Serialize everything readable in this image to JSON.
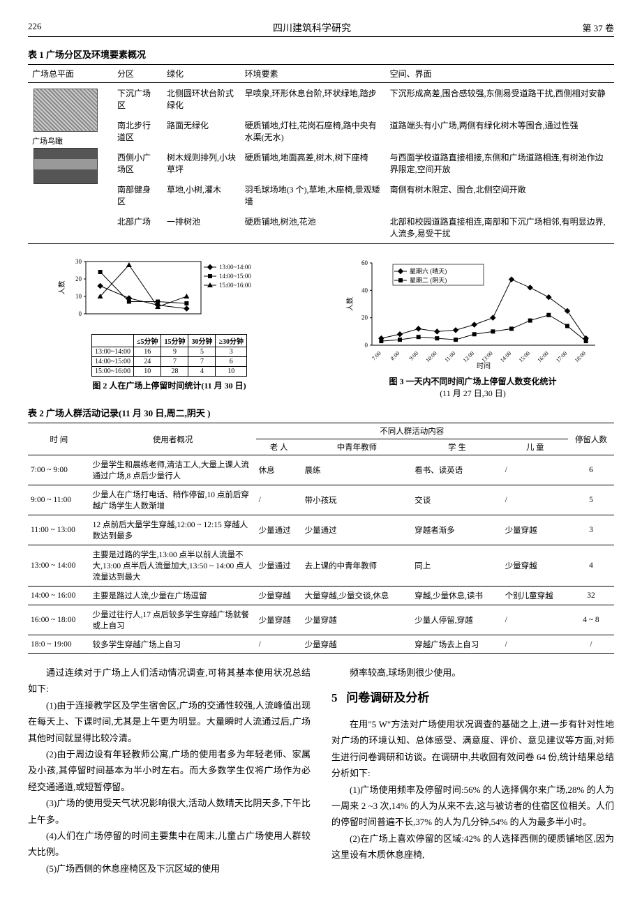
{
  "header": {
    "page_num": "226",
    "journal": "四川建筑科学研究",
    "volume": "第 37 卷"
  },
  "table1": {
    "caption": "表 1  广场分区及环境要素概况",
    "columns": [
      "广场总平面",
      "分区",
      "绿化",
      "环境要素",
      "空间、界面"
    ],
    "plan_label1": "广场鸟瞰",
    "rows": [
      {
        "zone": "下沉广场区",
        "green": "北侧圆环状台阶式绿化",
        "env": "旱喷泉,环形休息台阶,环状绿地,踏步",
        "space": "下沉形成高差,围合感较强,东侧易受道路干扰,西侧相对安静"
      },
      {
        "zone": "南北步行道区",
        "green": "路面无绿化",
        "env": "硬质铺地,灯柱,花岗石座椅,路中央有水渠(无水)",
        "space": "道路端头有小广场,两侧有绿化树木等围合,通过性强"
      },
      {
        "zone": "西侧小广场区",
        "green": "树木规则排列,小块草坪",
        "env": "硬质铺地,地面高差,树木,树下座椅",
        "space": "与西面学校道路直接相接,东侧和广场道路相连,有树池作边界限定,空间开放"
      },
      {
        "zone": "南部健身区",
        "green": "草地,小树,灌木",
        "env": "羽毛球场地(3 个),草地,木座椅,景观矮墙",
        "space": "南侧有树木限定、围合,北侧空间开敞"
      },
      {
        "zone": "北部广场",
        "green": "一排树池",
        "env": "硬质铺地,树池,花池",
        "space": "北部和校园道路直接相连,南部和下沉广场相邻,有明显边界,人流多,易受干扰"
      }
    ]
  },
  "fig2": {
    "caption": "图 2  人在广场上停留时间统计(11 月 30 日)",
    "y_label": "人数",
    "y_max": 30,
    "categories": [
      "≤5分钟",
      "15分钟",
      "30分钟",
      "≥30分钟"
    ],
    "legend": [
      "13:00~14:00",
      "14:00~15:00",
      "15:00~16:00"
    ],
    "table_rows": [
      {
        "label": "13:00~14:00",
        "vals": [
          16,
          9,
          5,
          3
        ]
      },
      {
        "label": "14:00~15:00",
        "vals": [
          24,
          7,
          7,
          6
        ]
      },
      {
        "label": "15:00~16:00",
        "vals": [
          10,
          28,
          4,
          10
        ]
      }
    ],
    "colors": {
      "line": "#000000",
      "text": "#000000"
    }
  },
  "fig3": {
    "caption": "图 3  一天内不同时间广场上停留人数变化统计",
    "subcap": "(11 月 27 日,30 日)",
    "y_label": "人数",
    "y_max": 60,
    "x_label": "时间",
    "x_ticks": [
      "7:00",
      "8:00",
      "9:00",
      "10:00",
      "11:00",
      "12:00",
      "13:00",
      "14:00",
      "15:00",
      "16:00",
      "17:00",
      "18:00"
    ],
    "legend": [
      "星期六 (晴天)",
      "星期二 (阴天)"
    ],
    "series": [
      {
        "name": "星期六 (晴天)",
        "marker": "diamond",
        "color": "#000000",
        "vals": [
          5,
          8,
          12,
          10,
          11,
          15,
          20,
          48,
          42,
          35,
          25,
          5
        ]
      },
      {
        "name": "星期二 (阴天)",
        "marker": "square",
        "color": "#000000",
        "vals": [
          3,
          4,
          6,
          5,
          4,
          8,
          10,
          12,
          18,
          22,
          14,
          3
        ]
      }
    ],
    "styling": {
      "grid_color": "#999999",
      "bg": "#ffffff"
    }
  },
  "table2": {
    "caption": "表 2  广场人群活动记录(11 月 30 日,周二,阴天 )",
    "col_time": "时   间",
    "col_profile": "使用者概况",
    "group_header": "不同人群活动内容",
    "sub_cols": [
      "老   人",
      "中青年教师",
      "学   生",
      "儿   童"
    ],
    "col_stay": "停留人数",
    "rows": [
      {
        "time": "7:00 ~ 9:00",
        "profile": "少量学生和晨练老师,清洁工人,大量上课人流通过广场,8 点后少量行人",
        "c1": "休息",
        "c2": "晨练",
        "c3": "看书、读英语",
        "c4": "/",
        "stay": "6"
      },
      {
        "time": "9:00 ~ 11:00",
        "profile": "少量人在广场打电话、稍作停留,10 点前后穿越广场学生人数渐增",
        "c1": "/",
        "c2": "带小孩玩",
        "c3": "交谈",
        "c4": "/",
        "stay": "5"
      },
      {
        "time": "11:00 ~ 13:00",
        "profile": "12 点前后大量学生穿越,12:00 ~ 12:15 穿越人数达到最多",
        "c1": "少量通过",
        "c2": "少量通过",
        "c3": "穿越者渐多",
        "c4": "少量穿越",
        "stay": "3"
      },
      {
        "time": "13:00 ~ 14:00",
        "profile": "主要是过路的学生,13:00 点半以前人流量不大,13:00 点半后人流量加大,13:50 ~ 14:00 点人流量达到最大",
        "c1": "少量通过",
        "c2": "去上课的中青年教师",
        "c3": "同上",
        "c4": "少量穿越",
        "stay": "4"
      },
      {
        "time": "14:00 ~ 16:00",
        "profile": "主要是路过人流,少量在广场逗留",
        "c1": "少量穿越",
        "c2": "大量穿越,少量交谈,休息",
        "c3": "穿越,少量休息,读书",
        "c4": "个别儿童穿越",
        "stay": "32"
      },
      {
        "time": "16:00 ~ 18:00",
        "profile": "少量过往行人,17 点后较多学生穿越广场就餐或上自习",
        "c1": "少量穿越",
        "c2": "少量穿越",
        "c3": "少量人停留,穿越",
        "c4": "/",
        "stay": "4 ~ 8"
      },
      {
        "time": "18:0 ~ 19:00",
        "profile": "较多学生穿越广场上自习",
        "c1": "/",
        "c2": "少量穿越",
        "c3": "穿越广场去上自习",
        "c4": "/",
        "stay": "/"
      }
    ]
  },
  "body": {
    "left": {
      "p1": "通过连续对于广场上人们活动情况调查,可将其基本使用状况总结如下:",
      "p2": "(1)由于连接教学区及学生宿舍区,广场的交通性较强,人流峰值出现在每天上、下课时间,尤其是上午更为明显。大量瞬时人流通过后,广场其他时间就显得比较冷清。",
      "p3": "(2)由于周边设有年轻教师公寓,广场的使用者多为年轻老师、家属及小孩,其停留时间基本为半小时左右。而大多数学生仅将广场作为必经交通通道,或短暂停留。",
      "p4": "(3)广场的使用受天气状况影响很大,活动人数晴天比阴天多,下午比上午多。",
      "p5": "(4)人们在广场停留的时间主要集中在周末,儿童占广场使用人群较大比例。",
      "p6": "(5)广场西侧的休息座椅区及下沉区域的使用"
    },
    "right": {
      "p1": "频率较高,球场则很少使用。",
      "section_num": "5",
      "section_title": "问卷调研及分析",
      "p2": "在用\"5 W\"方法对广场使用状况调查的基础之上,进一步有针对性地对广场的环境认知、总体感受、满意度、评价、意见建议等方面,对师生进行问卷调研和访谈。在调研中,共收回有效问卷 64 份,统计结果总结分析如下:",
      "p3": "(1)广场使用频率及停留时间:56% 的人选择偶尔来广场,28% 的人为一周来 2 ~3 次,14% 的人为从来不去,这与被访者的住宿区位相关。人们的停留时间普遍不长,37% 的人为几分钟,54% 的人为最多半小时。",
      "p4": "(2)在广场上喜欢停留的区域:42% 的人选择西侧的硬质铺地区,因为这里设有木质休息座椅,"
    }
  }
}
